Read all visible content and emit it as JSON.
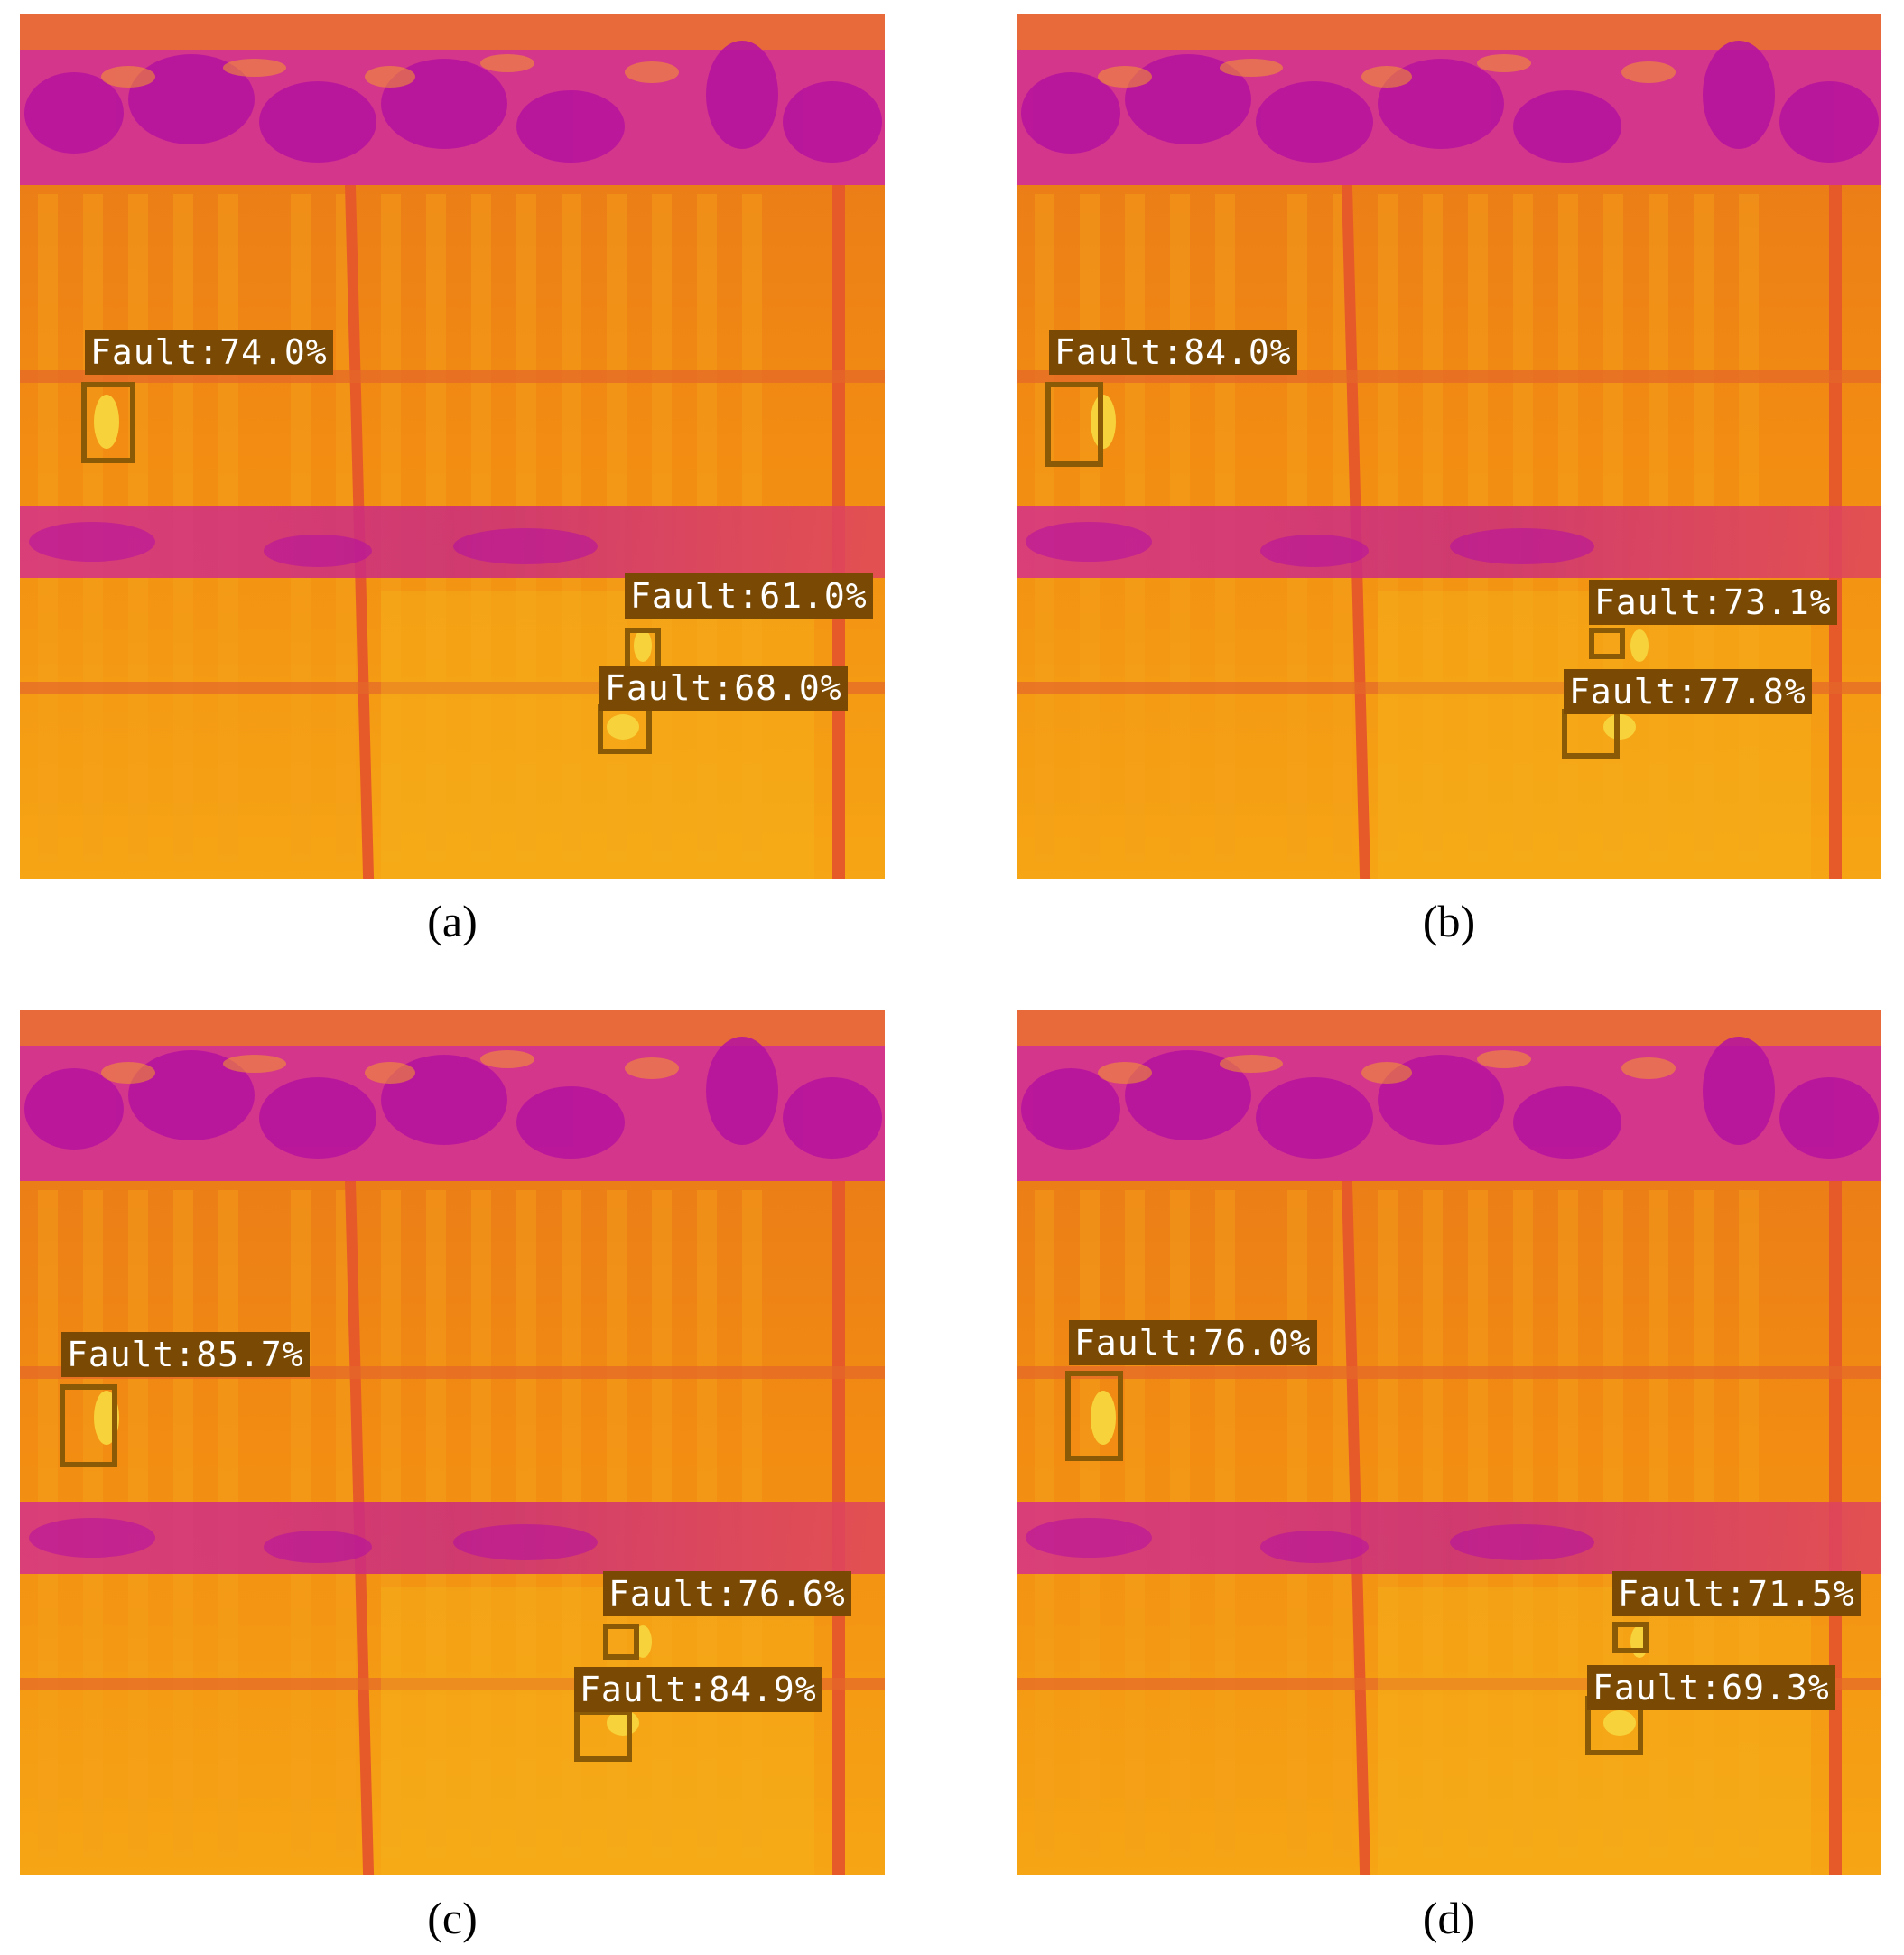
{
  "panels": [
    {
      "caption": "(a)",
      "labels": [
        "Fault:74.0%",
        "Fault:61.0%",
        "Fault:68.0%"
      ]
    },
    {
      "caption": "(b)",
      "labels": [
        "Fault:84.0%",
        "Fault:73.1%",
        "Fault:77.8%"
      ]
    },
    {
      "caption": "(c)",
      "labels": [
        "Fault:85.7%",
        "Fault:76.6%",
        "Fault:84.9%"
      ]
    },
    {
      "caption": "(d)",
      "labels": [
        "Fault:76.0%",
        "Fault:71.5%",
        "Fault:69.3%"
      ]
    }
  ],
  "colors": {
    "panel_base": "#f08a14",
    "vegetation": "#c0189a",
    "hotspot": "#f7d23a",
    "label_bg": "#7a4a04",
    "box_border": "#8a5a06"
  }
}
